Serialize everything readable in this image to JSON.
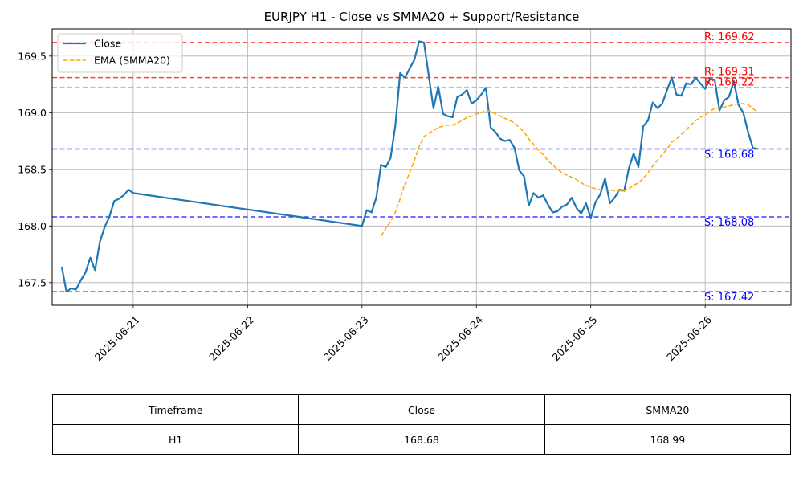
{
  "chart_data": {
    "type": "line",
    "title": "EURJPY H1 - Close vs SMMA20 + Support/Resistance",
    "xlabel": "",
    "ylabel": "",
    "ylim": [
      167.3,
      169.74
    ],
    "x_range": [
      "2025-06-20T07:00",
      "2025-06-26T18:00"
    ],
    "grid": true,
    "legend_position": "top-left",
    "x_ticks": [
      "2025-06-21",
      "2025-06-22",
      "2025-06-23",
      "2025-06-24",
      "2025-06-25",
      "2025-06-26"
    ],
    "y_ticks": [
      167.5,
      168.0,
      168.5,
      169.0,
      169.5
    ],
    "series": [
      {
        "name": "Close",
        "color": "#1f77b4",
        "style": "solid",
        "points": [
          [
            "2025-06-20T09:00",
            167.64
          ],
          [
            "2025-06-20T10:00",
            167.42
          ],
          [
            "2025-06-20T11:00",
            167.45
          ],
          [
            "2025-06-20T12:00",
            167.44
          ],
          [
            "2025-06-20T13:00",
            167.52
          ],
          [
            "2025-06-20T14:00",
            167.59
          ],
          [
            "2025-06-20T15:00",
            167.72
          ],
          [
            "2025-06-20T16:00",
            167.61
          ],
          [
            "2025-06-20T17:00",
            167.86
          ],
          [
            "2025-06-20T18:00",
            167.99
          ],
          [
            "2025-06-20T19:00",
            168.08
          ],
          [
            "2025-06-20T20:00",
            168.22
          ],
          [
            "2025-06-20T21:00",
            168.24
          ],
          [
            "2025-06-20T22:00",
            168.27
          ],
          [
            "2025-06-20T23:00",
            168.32
          ],
          [
            "2025-06-21T00:00",
            168.29
          ],
          [
            "2025-06-23T00:00",
            168.0
          ],
          [
            "2025-06-23T01:00",
            168.14
          ],
          [
            "2025-06-23T02:00",
            168.12
          ],
          [
            "2025-06-23T03:00",
            168.25
          ],
          [
            "2025-06-23T04:00",
            168.54
          ],
          [
            "2025-06-23T05:00",
            168.52
          ],
          [
            "2025-06-23T06:00",
            168.6
          ],
          [
            "2025-06-23T07:00",
            168.89
          ],
          [
            "2025-06-23T08:00",
            169.35
          ],
          [
            "2025-06-23T09:00",
            169.31
          ],
          [
            "2025-06-23T10:00",
            169.39
          ],
          [
            "2025-06-23T11:00",
            169.47
          ],
          [
            "2025-06-23T12:00",
            169.63
          ],
          [
            "2025-06-23T13:00",
            169.62
          ],
          [
            "2025-06-23T14:00",
            169.33
          ],
          [
            "2025-06-23T15:00",
            169.04
          ],
          [
            "2025-06-23T16:00",
            169.23
          ],
          [
            "2025-06-23T17:00",
            168.99
          ],
          [
            "2025-06-23T18:00",
            168.97
          ],
          [
            "2025-06-23T19:00",
            168.96
          ],
          [
            "2025-06-23T20:00",
            169.14
          ],
          [
            "2025-06-23T21:00",
            169.16
          ],
          [
            "2025-06-23T22:00",
            169.2
          ],
          [
            "2025-06-23T23:00",
            169.08
          ],
          [
            "2025-06-24T00:00",
            169.11
          ],
          [
            "2025-06-24T01:00",
            169.16
          ],
          [
            "2025-06-24T02:00",
            169.22
          ],
          [
            "2025-06-24T03:00",
            168.87
          ],
          [
            "2025-06-24T04:00",
            168.83
          ],
          [
            "2025-06-24T05:00",
            168.77
          ],
          [
            "2025-06-24T06:00",
            168.75
          ],
          [
            "2025-06-24T07:00",
            168.76
          ],
          [
            "2025-06-24T08:00",
            168.69
          ],
          [
            "2025-06-24T09:00",
            168.49
          ],
          [
            "2025-06-24T10:00",
            168.44
          ],
          [
            "2025-06-24T11:00",
            168.18
          ],
          [
            "2025-06-24T12:00",
            168.29
          ],
          [
            "2025-06-24T13:00",
            168.25
          ],
          [
            "2025-06-24T14:00",
            168.27
          ],
          [
            "2025-06-24T15:00",
            168.19
          ],
          [
            "2025-06-24T16:00",
            168.12
          ],
          [
            "2025-06-24T17:00",
            168.13
          ],
          [
            "2025-06-24T18:00",
            168.17
          ],
          [
            "2025-06-24T19:00",
            168.19
          ],
          [
            "2025-06-24T20:00",
            168.25
          ],
          [
            "2025-06-24T21:00",
            168.16
          ],
          [
            "2025-06-24T22:00",
            168.11
          ],
          [
            "2025-06-24T23:00",
            168.2
          ],
          [
            "2025-06-25T00:00",
            168.07
          ],
          [
            "2025-06-25T01:00",
            168.21
          ],
          [
            "2025-06-25T02:00",
            168.28
          ],
          [
            "2025-06-25T03:00",
            168.42
          ],
          [
            "2025-06-25T04:00",
            168.2
          ],
          [
            "2025-06-25T05:00",
            168.25
          ],
          [
            "2025-06-25T06:00",
            168.32
          ],
          [
            "2025-06-25T07:00",
            168.31
          ],
          [
            "2025-06-25T08:00",
            168.51
          ],
          [
            "2025-06-25T09:00",
            168.64
          ],
          [
            "2025-06-25T10:00",
            168.52
          ],
          [
            "2025-06-25T11:00",
            168.88
          ],
          [
            "2025-06-25T12:00",
            168.93
          ],
          [
            "2025-06-25T13:00",
            169.09
          ],
          [
            "2025-06-25T14:00",
            169.04
          ],
          [
            "2025-06-25T15:00",
            169.08
          ],
          [
            "2025-06-25T16:00",
            169.2
          ],
          [
            "2025-06-25T17:00",
            169.31
          ],
          [
            "2025-06-25T18:00",
            169.16
          ],
          [
            "2025-06-25T19:00",
            169.15
          ],
          [
            "2025-06-25T20:00",
            169.26
          ],
          [
            "2025-06-25T21:00",
            169.25
          ],
          [
            "2025-06-25T22:00",
            169.31
          ],
          [
            "2025-06-25T23:00",
            169.26
          ],
          [
            "2025-06-26T00:00",
            169.21
          ],
          [
            "2025-06-26T01:00",
            169.3
          ],
          [
            "2025-06-26T02:00",
            169.29
          ],
          [
            "2025-06-26T03:00",
            169.02
          ],
          [
            "2025-06-26T04:00",
            169.11
          ],
          [
            "2025-06-26T05:00",
            169.14
          ],
          [
            "2025-06-26T06:00",
            169.28
          ],
          [
            "2025-06-26T07:00",
            169.07
          ],
          [
            "2025-06-26T08:00",
            169.0
          ],
          [
            "2025-06-26T09:00",
            168.83
          ],
          [
            "2025-06-26T10:00",
            168.69
          ],
          [
            "2025-06-26T11:00",
            168.68
          ]
        ]
      },
      {
        "name": "EMA (SMMA20)",
        "color": "#ffa500",
        "style": "dashed",
        "points": [
          [
            "2025-06-23T04:00",
            167.91
          ],
          [
            "2025-06-23T05:00",
            167.98
          ],
          [
            "2025-06-23T06:00",
            168.04
          ],
          [
            "2025-06-23T07:00",
            168.12
          ],
          [
            "2025-06-23T08:00",
            168.24
          ],
          [
            "2025-06-23T09:00",
            168.37
          ],
          [
            "2025-06-23T10:00",
            168.47
          ],
          [
            "2025-06-23T11:00",
            168.58
          ],
          [
            "2025-06-23T12:00",
            168.7
          ],
          [
            "2025-06-23T13:00",
            168.79
          ],
          [
            "2025-06-23T14:00",
            168.82
          ],
          [
            "2025-06-23T15:00",
            168.84
          ],
          [
            "2025-06-23T16:00",
            168.87
          ],
          [
            "2025-06-23T17:00",
            168.88
          ],
          [
            "2025-06-23T18:00",
            168.89
          ],
          [
            "2025-06-23T19:00",
            168.89
          ],
          [
            "2025-06-23T20:00",
            168.91
          ],
          [
            "2025-06-23T21:00",
            168.93
          ],
          [
            "2025-06-23T22:00",
            168.96
          ],
          [
            "2025-06-23T23:00",
            168.97
          ],
          [
            "2025-06-24T00:00",
            168.99
          ],
          [
            "2025-06-24T01:00",
            169.0
          ],
          [
            "2025-06-24T02:00",
            169.02
          ],
          [
            "2025-06-24T03:00",
            169.01
          ],
          [
            "2025-06-24T04:00",
            168.99
          ],
          [
            "2025-06-24T05:00",
            168.97
          ],
          [
            "2025-06-24T06:00",
            168.95
          ],
          [
            "2025-06-24T07:00",
            168.93
          ],
          [
            "2025-06-24T08:00",
            168.91
          ],
          [
            "2025-06-24T09:00",
            168.87
          ],
          [
            "2025-06-24T10:00",
            168.83
          ],
          [
            "2025-06-24T11:00",
            168.77
          ],
          [
            "2025-06-24T12:00",
            168.72
          ],
          [
            "2025-06-24T13:00",
            168.67
          ],
          [
            "2025-06-24T14:00",
            168.63
          ],
          [
            "2025-06-24T15:00",
            168.58
          ],
          [
            "2025-06-24T16:00",
            168.54
          ],
          [
            "2025-06-24T17:00",
            168.5
          ],
          [
            "2025-06-24T18:00",
            168.47
          ],
          [
            "2025-06-24T19:00",
            168.45
          ],
          [
            "2025-06-24T20:00",
            168.43
          ],
          [
            "2025-06-24T21:00",
            168.41
          ],
          [
            "2025-06-24T22:00",
            168.38
          ],
          [
            "2025-06-24T23:00",
            168.36
          ],
          [
            "2025-06-25T00:00",
            168.34
          ],
          [
            "2025-06-25T01:00",
            168.33
          ],
          [
            "2025-06-25T02:00",
            168.32
          ],
          [
            "2025-06-25T03:00",
            168.32
          ],
          [
            "2025-06-25T04:00",
            168.32
          ],
          [
            "2025-06-25T05:00",
            168.31
          ],
          [
            "2025-06-25T06:00",
            168.31
          ],
          [
            "2025-06-25T07:00",
            168.31
          ],
          [
            "2025-06-25T08:00",
            168.33
          ],
          [
            "2025-06-25T09:00",
            168.36
          ],
          [
            "2025-06-25T10:00",
            168.38
          ],
          [
            "2025-06-25T11:00",
            168.42
          ],
          [
            "2025-06-25T12:00",
            168.47
          ],
          [
            "2025-06-25T13:00",
            168.53
          ],
          [
            "2025-06-25T14:00",
            168.58
          ],
          [
            "2025-06-25T15:00",
            168.63
          ],
          [
            "2025-06-25T16:00",
            168.68
          ],
          [
            "2025-06-25T17:00",
            168.74
          ],
          [
            "2025-06-25T18:00",
            168.77
          ],
          [
            "2025-06-25T19:00",
            168.81
          ],
          [
            "2025-06-25T20:00",
            168.85
          ],
          [
            "2025-06-25T21:00",
            168.89
          ],
          [
            "2025-06-25T22:00",
            168.93
          ],
          [
            "2025-06-25T23:00",
            168.96
          ],
          [
            "2025-06-26T00:00",
            168.98
          ],
          [
            "2025-06-26T01:00",
            169.01
          ],
          [
            "2025-06-26T02:00",
            169.04
          ],
          [
            "2025-06-26T03:00",
            169.04
          ],
          [
            "2025-06-26T04:00",
            169.05
          ],
          [
            "2025-06-26T05:00",
            169.06
          ],
          [
            "2025-06-26T06:00",
            169.07
          ],
          [
            "2025-06-26T07:00",
            169.08
          ],
          [
            "2025-06-26T08:00",
            169.08
          ],
          [
            "2025-06-26T09:00",
            169.07
          ],
          [
            "2025-06-26T10:00",
            169.04
          ],
          [
            "2025-06-26T11:00",
            169.0
          ]
        ]
      }
    ],
    "resistance_levels": [
      {
        "value": 169.62,
        "label": "R: 169.62"
      },
      {
        "value": 169.31,
        "label": "R: 169.31"
      },
      {
        "value": 169.22,
        "label": "R: 169.22"
      }
    ],
    "support_levels": [
      {
        "value": 168.68,
        "label": "S: 168.68"
      },
      {
        "value": 168.08,
        "label": "S: 168.08"
      },
      {
        "value": 167.42,
        "label": "S: 167.42"
      }
    ],
    "colors": {
      "resistance": "#ff0000",
      "support": "#0000ff",
      "grid": "#b0b0b0"
    }
  },
  "table": {
    "headers": [
      "Timeframe",
      "Close",
      "SMMA20"
    ],
    "rows": [
      [
        "H1",
        "168.68",
        "168.99"
      ]
    ]
  }
}
